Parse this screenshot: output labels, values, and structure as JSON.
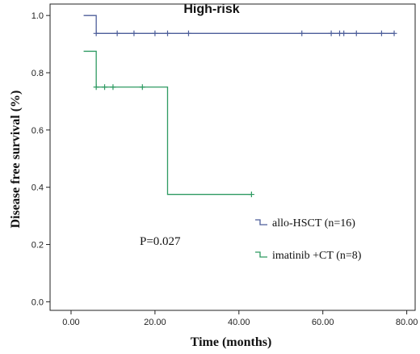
{
  "chart_data": {
    "type": "line",
    "title": "High-risk",
    "xlabel": "Time (months)",
    "ylabel": "Disease free survival (%)",
    "xlim": [
      -5,
      82
    ],
    "ylim": [
      -0.03,
      1.04
    ],
    "x_ticks": [
      0,
      20,
      40,
      60,
      80
    ],
    "x_tick_labels": [
      "0.00",
      "20.00",
      "40.00",
      "60.00",
      "80.00"
    ],
    "y_ticks": [
      0,
      0.2,
      0.4,
      0.6,
      0.8,
      1.0
    ],
    "y_tick_labels": [
      "0.0",
      "0.2",
      "0.4",
      "0.6",
      "0.8",
      "1.0"
    ],
    "grid": false,
    "legend_position": "right",
    "annotation": "P=0.027",
    "series": [
      {
        "name": "allo-HSCT (n=16)",
        "color": "#4d5e9a",
        "steps": [
          [
            3,
            1.0
          ],
          [
            6,
            0.9375
          ],
          [
            77,
            0.9375
          ]
        ],
        "censored": [
          [
            6,
            0.9375
          ],
          [
            11,
            0.9375
          ],
          [
            15,
            0.9375
          ],
          [
            20,
            0.9375
          ],
          [
            23,
            0.9375
          ],
          [
            28,
            0.9375
          ],
          [
            55,
            0.9375
          ],
          [
            62,
            0.9375
          ],
          [
            64,
            0.9375
          ],
          [
            65,
            0.9375
          ],
          [
            68,
            0.9375
          ],
          [
            74,
            0.9375
          ],
          [
            77,
            0.9375
          ]
        ]
      },
      {
        "name": "imatinib +CT (n=8)",
        "color": "#2e9a62",
        "steps": [
          [
            3,
            0.875
          ],
          [
            6,
            0.75
          ],
          [
            23,
            0.375
          ],
          [
            43,
            0.375
          ]
        ],
        "censored": [
          [
            6,
            0.75
          ],
          [
            8,
            0.75
          ],
          [
            10,
            0.75
          ],
          [
            17,
            0.75
          ],
          [
            43,
            0.375
          ]
        ]
      }
    ]
  }
}
